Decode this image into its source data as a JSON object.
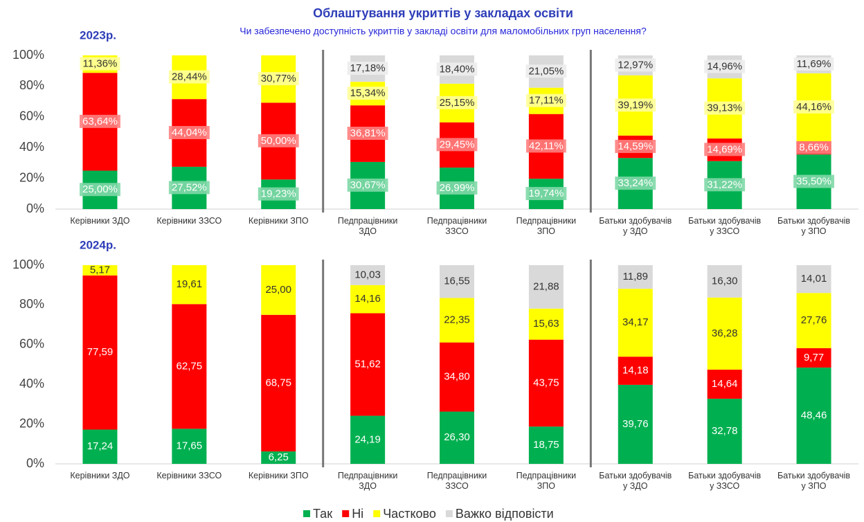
{
  "title": "Облаштування укриттів у закладах освіти",
  "subtitle": "Чи забезпечено доступність укриттів у закладі освіти для маломобільних груп населення?",
  "chart_data": [
    {
      "type": "stacked_bar",
      "title": "2023р.",
      "categories": [
        "Керівники ЗДО",
        "Керівники ЗЗСО",
        "Керівники ЗПО",
        "Педпрацівники\nЗДО",
        "Педпрацівники\nЗЗСО",
        "Педпрацівники\nЗПО",
        "Батьки здобувачів\nу ЗДО",
        "Батьки здобувачів\nу ЗЗСО",
        "Батьки здобувачів\nу ЗПО"
      ],
      "ylim": [
        0,
        100
      ],
      "yticks": [
        {
          "value": 0,
          "label": "0%"
        },
        {
          "value": 20,
          "label": "20%"
        },
        {
          "value": 40,
          "label": "40%"
        },
        {
          "value": 60,
          "label": "60%"
        },
        {
          "value": 80,
          "label": "80%"
        },
        {
          "value": 100,
          "label": "100%"
        }
      ],
      "grid": false,
      "label_boxes": true,
      "series": [
        {
          "name": "Так",
          "color": "#00b050",
          "values": [
            25.0,
            27.52,
            19.23,
            30.67,
            26.99,
            19.74,
            33.24,
            31.22,
            35.5
          ],
          "value_labels": [
            "25,00%",
            "27,52%",
            "19,23%",
            "30,67%",
            "26,99%",
            "19,74%",
            "33,24%",
            "31,22%",
            "35,50%"
          ]
        },
        {
          "name": "Ні",
          "color": "#ff0000",
          "values": [
            63.64,
            44.04,
            50.0,
            36.81,
            29.45,
            42.11,
            14.59,
            14.69,
            8.66
          ],
          "value_labels": [
            "63,64%",
            "44,04%",
            "50,00%",
            "36,81%",
            "29,45%",
            "42,11%",
            "14,59%",
            "14,69%",
            "8,66%"
          ]
        },
        {
          "name": "Частково",
          "color": "#ffff00",
          "values": [
            11.36,
            28.44,
            30.77,
            15.34,
            25.15,
            17.11,
            39.19,
            39.13,
            44.16
          ],
          "value_labels": [
            "11,36%",
            "28,44%",
            "30,77%",
            "15,34%",
            "25,15%",
            "17,11%",
            "39,19%",
            "39,13%",
            "44,16%"
          ]
        },
        {
          "name": "Важко відповісти",
          "color": "#d9d9d9",
          "values": [
            null,
            null,
            null,
            17.18,
            18.4,
            21.05,
            12.97,
            14.96,
            11.69
          ],
          "value_labels": [
            null,
            null,
            null,
            "17,18%",
            "18,40%",
            "21,05%",
            "12,97%",
            "14,96%",
            "11,69%"
          ]
        }
      ]
    },
    {
      "type": "stacked_bar",
      "title": "2024р.",
      "categories": [
        "Керівники ЗДО",
        "Керівники ЗЗСО",
        "Керівники ЗПО",
        "Педпрацівники\nЗДО",
        "Педпрацівники\nЗЗСО",
        "Педпрацівники\nЗПО",
        "Батьки здобувачів\nу ЗДО",
        "Батьки здобувачів\nу ЗЗСО",
        "Батьки здобувачів\nу ЗПО"
      ],
      "ylim": [
        0,
        100
      ],
      "yticks": [
        {
          "value": 0,
          "label": "0%"
        },
        {
          "value": 20,
          "label": "20%"
        },
        {
          "value": 40,
          "label": "40%"
        },
        {
          "value": 60,
          "label": "60%"
        },
        {
          "value": 80,
          "label": "80%"
        },
        {
          "value": 100,
          "label": "100%"
        }
      ],
      "grid": false,
      "label_boxes": false,
      "series": [
        {
          "name": "Так",
          "color": "#00b050",
          "values": [
            17.24,
            17.65,
            6.25,
            24.19,
            26.3,
            18.75,
            39.76,
            32.78,
            48.46
          ],
          "value_labels": [
            "17,24",
            "17,65",
            "6,25",
            "24,19",
            "26,30",
            "18,75",
            "39,76",
            "32,78",
            "48,46"
          ]
        },
        {
          "name": "Ні",
          "color": "#ff0000",
          "values": [
            77.59,
            62.75,
            68.75,
            51.62,
            34.8,
            43.75,
            14.18,
            14.64,
            9.77
          ],
          "value_labels": [
            "77,59",
            "62,75",
            "68,75",
            "51,62",
            "34,80",
            "43,75",
            "14,18",
            "14,64",
            "9,77"
          ]
        },
        {
          "name": "Частково",
          "color": "#ffff00",
          "values": [
            5.17,
            19.61,
            25.0,
            14.16,
            22.35,
            15.63,
            34.17,
            36.28,
            27.76
          ],
          "value_labels": [
            "5,17",
            "19,61",
            "25,00",
            "14,16",
            "22,35",
            "15,63",
            "34,17",
            "36,28",
            "27,76"
          ]
        },
        {
          "name": "Важко відповісти",
          "color": "#d9d9d9",
          "values": [
            null,
            null,
            null,
            10.03,
            16.55,
            21.88,
            11.89,
            16.3,
            14.01
          ],
          "value_labels": [
            null,
            null,
            null,
            "10,03",
            "16,55",
            "21,88",
            "11,89",
            "16,30",
            "14,01"
          ]
        }
      ]
    }
  ]
}
